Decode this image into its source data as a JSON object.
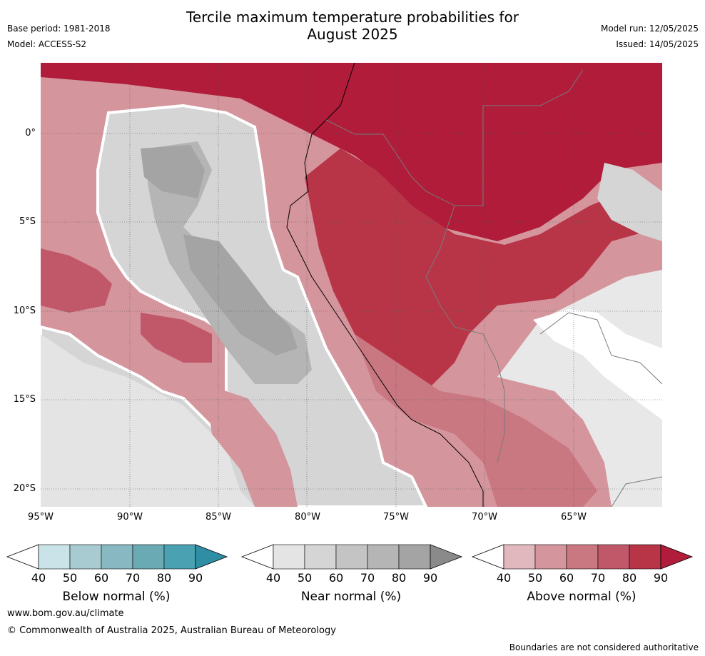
{
  "header": {
    "title_line1": "Tercile maximum temperature probabilities for",
    "title_line2": "August 2025",
    "base_period": "Base period: 1981-2018",
    "model": "Model: ACCESS-S2",
    "model_run": "Model run: 12/05/2025",
    "issued": "Issued: 14/05/2025"
  },
  "map": {
    "lat_labels": [
      "0°",
      "5°S",
      "10°S",
      "15°S",
      "20°S"
    ],
    "lon_labels": [
      "95°W",
      "90°W",
      "85°W",
      "80°W",
      "75°W",
      "70°W",
      "65°W"
    ],
    "extent": {
      "lon_min": -95,
      "lon_max": -60,
      "lat_min": -21,
      "lat_max": 4
    }
  },
  "colorbars": [
    {
      "label": "Below normal (%)",
      "ticks": [
        "40",
        "50",
        "60",
        "70",
        "80",
        "90"
      ],
      "colors": [
        "#ffffff",
        "#c9e3e8",
        "#a8cbd1",
        "#88b8c2",
        "#6aaab5",
        "#49a1b1",
        "#2f8ea3"
      ]
    },
    {
      "label": "Near normal (%)",
      "ticks": [
        "40",
        "50",
        "60",
        "70",
        "80",
        "90"
      ],
      "colors": [
        "#ffffff",
        "#e4e4e4",
        "#d5d5d5",
        "#c4c4c4",
        "#b5b5b5",
        "#a4a4a4",
        "#8a8a8a"
      ]
    },
    {
      "label": "Above normal (%)",
      "ticks": [
        "40",
        "50",
        "60",
        "70",
        "80",
        "90"
      ],
      "colors": [
        "#ffffff",
        "#e0b8bd",
        "#d4959d",
        "#c97781",
        "#c0586a",
        "#b83548",
        "#b01c3a"
      ]
    }
  ],
  "footer": {
    "url": "www.bom.gov.au/climate",
    "copyright": "© Commonwealth of Australia 2025, Australian Bureau of Meteorology",
    "disclaimer": "Boundaries are not considered authoritative"
  }
}
